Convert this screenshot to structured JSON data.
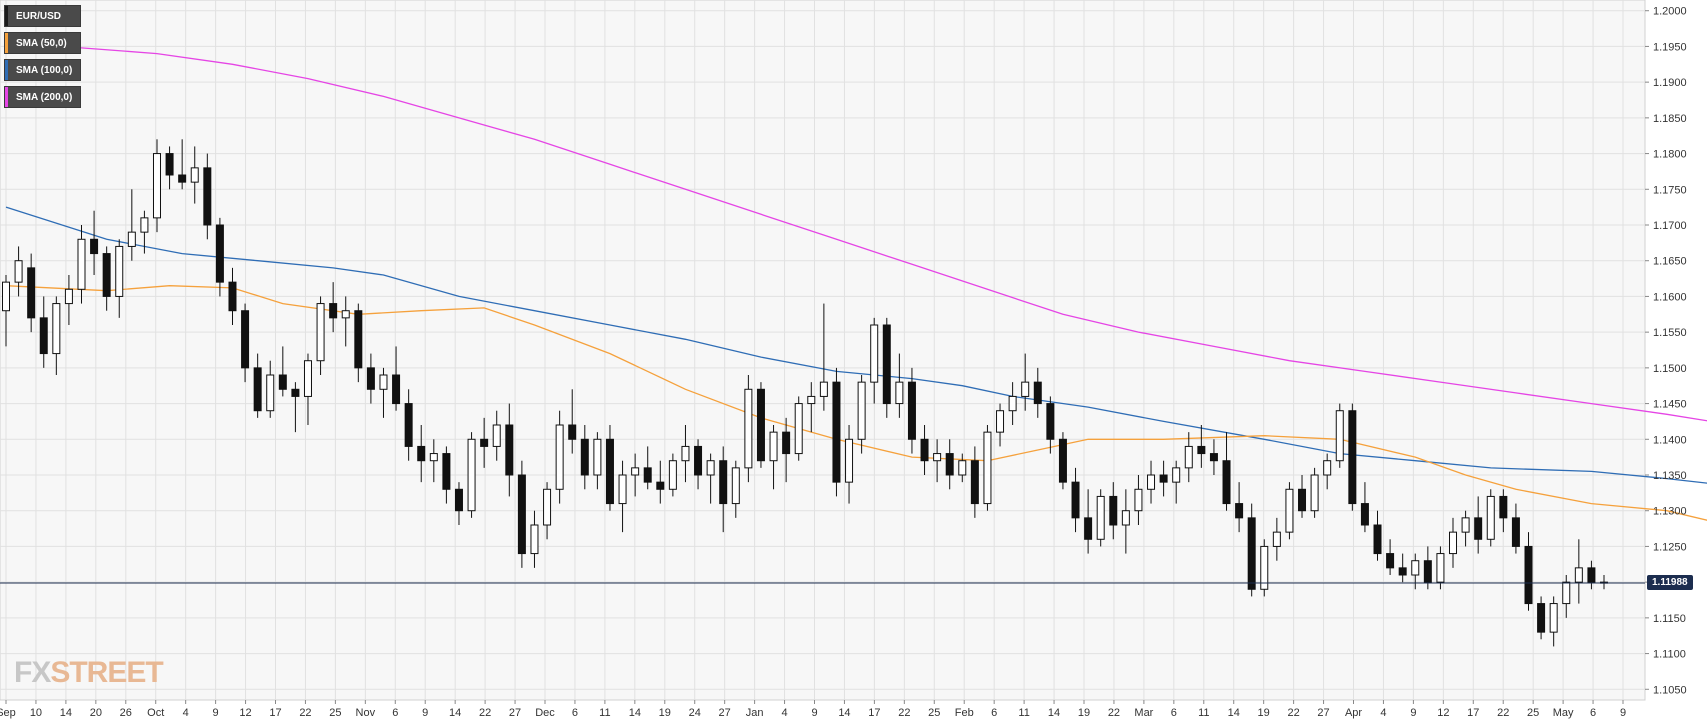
{
  "legend": [
    {
      "label": "EUR/USD",
      "color": "#1a1a1a"
    },
    {
      "label": "SMA (50,0)",
      "color": "#f5a13c"
    },
    {
      "label": "SMA (100,0)",
      "color": "#2f6db5"
    },
    {
      "label": "SMA (200,0)",
      "color": "#e545e5"
    }
  ],
  "current_price_label": "1.11988",
  "logo": {
    "part1": "FX",
    "part2": "STREET"
  },
  "colors": {
    "bull": "#ffffff",
    "bear": "#111111",
    "grid": "#e1e1e1",
    "bg": "#f7f7f7",
    "sma50": "#f5a13c",
    "sma100": "#2f6db5",
    "sma200": "#e545e5",
    "priceline": "#1c2d4f"
  },
  "chart_data": {
    "type": "candlestick",
    "title": "EUR/USD",
    "ylim": [
      1.1035,
      1.2015
    ],
    "y_ticks": [
      "1.2000",
      "1.1950",
      "1.1900",
      "1.1850",
      "1.1800",
      "1.1750",
      "1.1700",
      "1.1650",
      "1.1600",
      "1.1550",
      "1.1500",
      "1.1450",
      "1.1400",
      "1.1350",
      "1.1300",
      "1.1250",
      "1.1200",
      "1.1150",
      "1.1100",
      "1.1050"
    ],
    "x_ticks": [
      "Sep",
      "10",
      "14",
      "20",
      "26",
      "Oct",
      "4",
      "9",
      "12",
      "17",
      "22",
      "25",
      "Nov",
      "6",
      "9",
      "14",
      "22",
      "27",
      "Dec",
      "6",
      "11",
      "14",
      "19",
      "24",
      "27",
      "Jan",
      "4",
      "9",
      "14",
      "17",
      "22",
      "25",
      "Feb",
      "6",
      "11",
      "14",
      "19",
      "22",
      "Mar",
      "6",
      "11",
      "14",
      "19",
      "22",
      "27",
      "Apr",
      "4",
      "9",
      "12",
      "17",
      "22",
      "25",
      "May",
      "6",
      "9"
    ],
    "current_price": 1.11988,
    "ohlc": [
      [
        1.158,
        1.163,
        1.153,
        1.162
      ],
      [
        1.162,
        1.167,
        1.16,
        1.165
      ],
      [
        1.164,
        1.166,
        1.155,
        1.157
      ],
      [
        1.157,
        1.16,
        1.15,
        1.152
      ],
      [
        1.152,
        1.16,
        1.149,
        1.159
      ],
      [
        1.159,
        1.163,
        1.156,
        1.161
      ],
      [
        1.161,
        1.17,
        1.159,
        1.168
      ],
      [
        1.168,
        1.172,
        1.163,
        1.166
      ],
      [
        1.166,
        1.167,
        1.158,
        1.16
      ],
      [
        1.16,
        1.168,
        1.157,
        1.167
      ],
      [
        1.167,
        1.175,
        1.165,
        1.169
      ],
      [
        1.169,
        1.172,
        1.166,
        1.171
      ],
      [
        1.171,
        1.182,
        1.169,
        1.18
      ],
      [
        1.18,
        1.181,
        1.175,
        1.177
      ],
      [
        1.177,
        1.182,
        1.175,
        1.176
      ],
      [
        1.176,
        1.181,
        1.173,
        1.178
      ],
      [
        1.178,
        1.18,
        1.168,
        1.17
      ],
      [
        1.17,
        1.171,
        1.16,
        1.162
      ],
      [
        1.162,
        1.164,
        1.156,
        1.158
      ],
      [
        1.158,
        1.159,
        1.148,
        1.15
      ],
      [
        1.15,
        1.152,
        1.143,
        1.144
      ],
      [
        1.144,
        1.151,
        1.143,
        1.149
      ],
      [
        1.149,
        1.153,
        1.146,
        1.147
      ],
      [
        1.147,
        1.148,
        1.141,
        1.146
      ],
      [
        1.146,
        1.152,
        1.142,
        1.151
      ],
      [
        1.151,
        1.16,
        1.149,
        1.159
      ],
      [
        1.159,
        1.162,
        1.155,
        1.157
      ],
      [
        1.157,
        1.16,
        1.153,
        1.158
      ],
      [
        1.158,
        1.159,
        1.148,
        1.15
      ],
      [
        1.15,
        1.152,
        1.145,
        1.147
      ],
      [
        1.147,
        1.15,
        1.143,
        1.149
      ],
      [
        1.149,
        1.153,
        1.144,
        1.145
      ],
      [
        1.145,
        1.147,
        1.137,
        1.139
      ],
      [
        1.139,
        1.142,
        1.134,
        1.137
      ],
      [
        1.137,
        1.14,
        1.134,
        1.138
      ],
      [
        1.138,
        1.139,
        1.131,
        1.133
      ],
      [
        1.133,
        1.134,
        1.128,
        1.13
      ],
      [
        1.13,
        1.141,
        1.129,
        1.14
      ],
      [
        1.14,
        1.143,
        1.136,
        1.139
      ],
      [
        1.139,
        1.144,
        1.137,
        1.142
      ],
      [
        1.142,
        1.145,
        1.132,
        1.135
      ],
      [
        1.135,
        1.137,
        1.122,
        1.124
      ],
      [
        1.124,
        1.13,
        1.122,
        1.128
      ],
      [
        1.128,
        1.134,
        1.126,
        1.133
      ],
      [
        1.133,
        1.144,
        1.131,
        1.142
      ],
      [
        1.142,
        1.147,
        1.138,
        1.14
      ],
      [
        1.14,
        1.142,
        1.133,
        1.135
      ],
      [
        1.135,
        1.141,
        1.133,
        1.14
      ],
      [
        1.14,
        1.142,
        1.13,
        1.131
      ],
      [
        1.131,
        1.137,
        1.127,
        1.135
      ],
      [
        1.135,
        1.138,
        1.132,
        1.136
      ],
      [
        1.136,
        1.139,
        1.133,
        1.134
      ],
      [
        1.134,
        1.137,
        1.131,
        1.133
      ],
      [
        1.133,
        1.138,
        1.132,
        1.137
      ],
      [
        1.137,
        1.142,
        1.134,
        1.139
      ],
      [
        1.139,
        1.14,
        1.133,
        1.135
      ],
      [
        1.135,
        1.138,
        1.131,
        1.137
      ],
      [
        1.137,
        1.139,
        1.127,
        1.131
      ],
      [
        1.131,
        1.137,
        1.129,
        1.136
      ],
      [
        1.136,
        1.149,
        1.134,
        1.147
      ],
      [
        1.147,
        1.148,
        1.136,
        1.137
      ],
      [
        1.137,
        1.142,
        1.133,
        1.141
      ],
      [
        1.141,
        1.143,
        1.134,
        1.138
      ],
      [
        1.138,
        1.146,
        1.137,
        1.145
      ],
      [
        1.145,
        1.148,
        1.141,
        1.146
      ],
      [
        1.146,
        1.159,
        1.144,
        1.148
      ],
      [
        1.148,
        1.15,
        1.132,
        1.134
      ],
      [
        1.134,
        1.142,
        1.131,
        1.14
      ],
      [
        1.14,
        1.149,
        1.138,
        1.148
      ],
      [
        1.148,
        1.157,
        1.145,
        1.156
      ],
      [
        1.156,
        1.157,
        1.143,
        1.145
      ],
      [
        1.145,
        1.152,
        1.143,
        1.148
      ],
      [
        1.148,
        1.15,
        1.138,
        1.14
      ],
      [
        1.14,
        1.142,
        1.135,
        1.137
      ],
      [
        1.137,
        1.14,
        1.134,
        1.138
      ],
      [
        1.138,
        1.14,
        1.133,
        1.135
      ],
      [
        1.135,
        1.138,
        1.134,
        1.137
      ],
      [
        1.137,
        1.139,
        1.129,
        1.131
      ],
      [
        1.131,
        1.142,
        1.13,
        1.141
      ],
      [
        1.141,
        1.145,
        1.139,
        1.144
      ],
      [
        1.144,
        1.148,
        1.142,
        1.146
      ],
      [
        1.146,
        1.152,
        1.144,
        1.148
      ],
      [
        1.148,
        1.15,
        1.143,
        1.145
      ],
      [
        1.145,
        1.146,
        1.138,
        1.14
      ],
      [
        1.14,
        1.141,
        1.133,
        1.134
      ],
      [
        1.134,
        1.136,
        1.127,
        1.129
      ],
      [
        1.129,
        1.133,
        1.124,
        1.126
      ],
      [
        1.126,
        1.133,
        1.125,
        1.132
      ],
      [
        1.132,
        1.134,
        1.126,
        1.128
      ],
      [
        1.128,
        1.133,
        1.124,
        1.13
      ],
      [
        1.13,
        1.135,
        1.128,
        1.133
      ],
      [
        1.133,
        1.137,
        1.131,
        1.135
      ],
      [
        1.135,
        1.137,
        1.132,
        1.134
      ],
      [
        1.134,
        1.137,
        1.131,
        1.136
      ],
      [
        1.136,
        1.141,
        1.134,
        1.139
      ],
      [
        1.139,
        1.142,
        1.136,
        1.138
      ],
      [
        1.138,
        1.14,
        1.135,
        1.137
      ],
      [
        1.137,
        1.141,
        1.13,
        1.131
      ],
      [
        1.131,
        1.134,
        1.127,
        1.129
      ],
      [
        1.129,
        1.131,
        1.118,
        1.119
      ],
      [
        1.119,
        1.126,
        1.118,
        1.125
      ],
      [
        1.125,
        1.129,
        1.123,
        1.127
      ],
      [
        1.127,
        1.134,
        1.126,
        1.133
      ],
      [
        1.133,
        1.135,
        1.129,
        1.13
      ],
      [
        1.13,
        1.136,
        1.129,
        1.135
      ],
      [
        1.135,
        1.138,
        1.133,
        1.137
      ],
      [
        1.137,
        1.145,
        1.136,
        1.144
      ],
      [
        1.144,
        1.145,
        1.13,
        1.131
      ],
      [
        1.131,
        1.134,
        1.127,
        1.128
      ],
      [
        1.128,
        1.13,
        1.123,
        1.124
      ],
      [
        1.124,
        1.126,
        1.121,
        1.122
      ],
      [
        1.122,
        1.124,
        1.12,
        1.121
      ],
      [
        1.121,
        1.124,
        1.119,
        1.123
      ],
      [
        1.123,
        1.125,
        1.119,
        1.12
      ],
      [
        1.12,
        1.125,
        1.119,
        1.124
      ],
      [
        1.124,
        1.129,
        1.122,
        1.127
      ],
      [
        1.127,
        1.13,
        1.125,
        1.129
      ],
      [
        1.129,
        1.132,
        1.124,
        1.126
      ],
      [
        1.126,
        1.133,
        1.125,
        1.132
      ],
      [
        1.132,
        1.133,
        1.127,
        1.129
      ],
      [
        1.129,
        1.131,
        1.124,
        1.125
      ],
      [
        1.125,
        1.127,
        1.116,
        1.117
      ],
      [
        1.117,
        1.118,
        1.112,
        1.113
      ],
      [
        1.113,
        1.118,
        1.111,
        1.117
      ],
      [
        1.117,
        1.121,
        1.115,
        1.12
      ],
      [
        1.12,
        1.126,
        1.117,
        1.122
      ],
      [
        1.122,
        1.123,
        1.119,
        1.12
      ],
      [
        1.12,
        1.121,
        1.119,
        1.1199
      ]
    ],
    "sma50": [
      [
        0,
        1.1615
      ],
      [
        8,
        1.1608
      ],
      [
        13,
        1.1615
      ],
      [
        18,
        1.1612
      ],
      [
        22,
        1.159
      ],
      [
        28,
        1.1575
      ],
      [
        33,
        1.158
      ],
      [
        38,
        1.1584
      ],
      [
        42,
        1.156
      ],
      [
        48,
        1.152
      ],
      [
        54,
        1.147
      ],
      [
        60,
        1.143
      ],
      [
        66,
        1.14
      ],
      [
        72,
        1.1375
      ],
      [
        78,
        1.137
      ],
      [
        82,
        1.1385
      ],
      [
        86,
        1.14
      ],
      [
        92,
        1.14
      ],
      [
        100,
        1.1405
      ],
      [
        106,
        1.14
      ],
      [
        112,
        1.1375
      ],
      [
        116,
        1.135
      ],
      [
        120,
        1.133
      ],
      [
        126,
        1.131
      ],
      [
        132,
        1.13
      ],
      [
        138,
        1.1275
      ]
    ],
    "sma100": [
      [
        0,
        1.1725
      ],
      [
        8,
        1.168
      ],
      [
        14,
        1.166
      ],
      [
        20,
        1.165
      ],
      [
        26,
        1.164
      ],
      [
        30,
        1.163
      ],
      [
        36,
        1.16
      ],
      [
        42,
        1.158
      ],
      [
        48,
        1.156
      ],
      [
        54,
        1.154
      ],
      [
        60,
        1.1515
      ],
      [
        66,
        1.1495
      ],
      [
        72,
        1.1485
      ],
      [
        76,
        1.1475
      ],
      [
        80,
        1.146
      ],
      [
        86,
        1.1445
      ],
      [
        92,
        1.1425
      ],
      [
        100,
        1.14
      ],
      [
        106,
        1.138
      ],
      [
        112,
        1.137
      ],
      [
        118,
        1.136
      ],
      [
        126,
        1.1355
      ],
      [
        132,
        1.1345
      ],
      [
        138,
        1.1333
      ]
    ],
    "sma200": [
      [
        0,
        1.195
      ],
      [
        6,
        1.1948
      ],
      [
        12,
        1.194
      ],
      [
        18,
        1.1925
      ],
      [
        24,
        1.1905
      ],
      [
        30,
        1.188
      ],
      [
        36,
        1.185
      ],
      [
        42,
        1.182
      ],
      [
        48,
        1.1785
      ],
      [
        54,
        1.175
      ],
      [
        60,
        1.1715
      ],
      [
        66,
        1.168
      ],
      [
        72,
        1.1645
      ],
      [
        78,
        1.161
      ],
      [
        84,
        1.1575
      ],
      [
        90,
        1.155
      ],
      [
        96,
        1.153
      ],
      [
        102,
        1.151
      ],
      [
        108,
        1.1495
      ],
      [
        114,
        1.148
      ],
      [
        120,
        1.1465
      ],
      [
        126,
        1.145
      ],
      [
        132,
        1.1435
      ],
      [
        138,
        1.1418
      ]
    ]
  }
}
